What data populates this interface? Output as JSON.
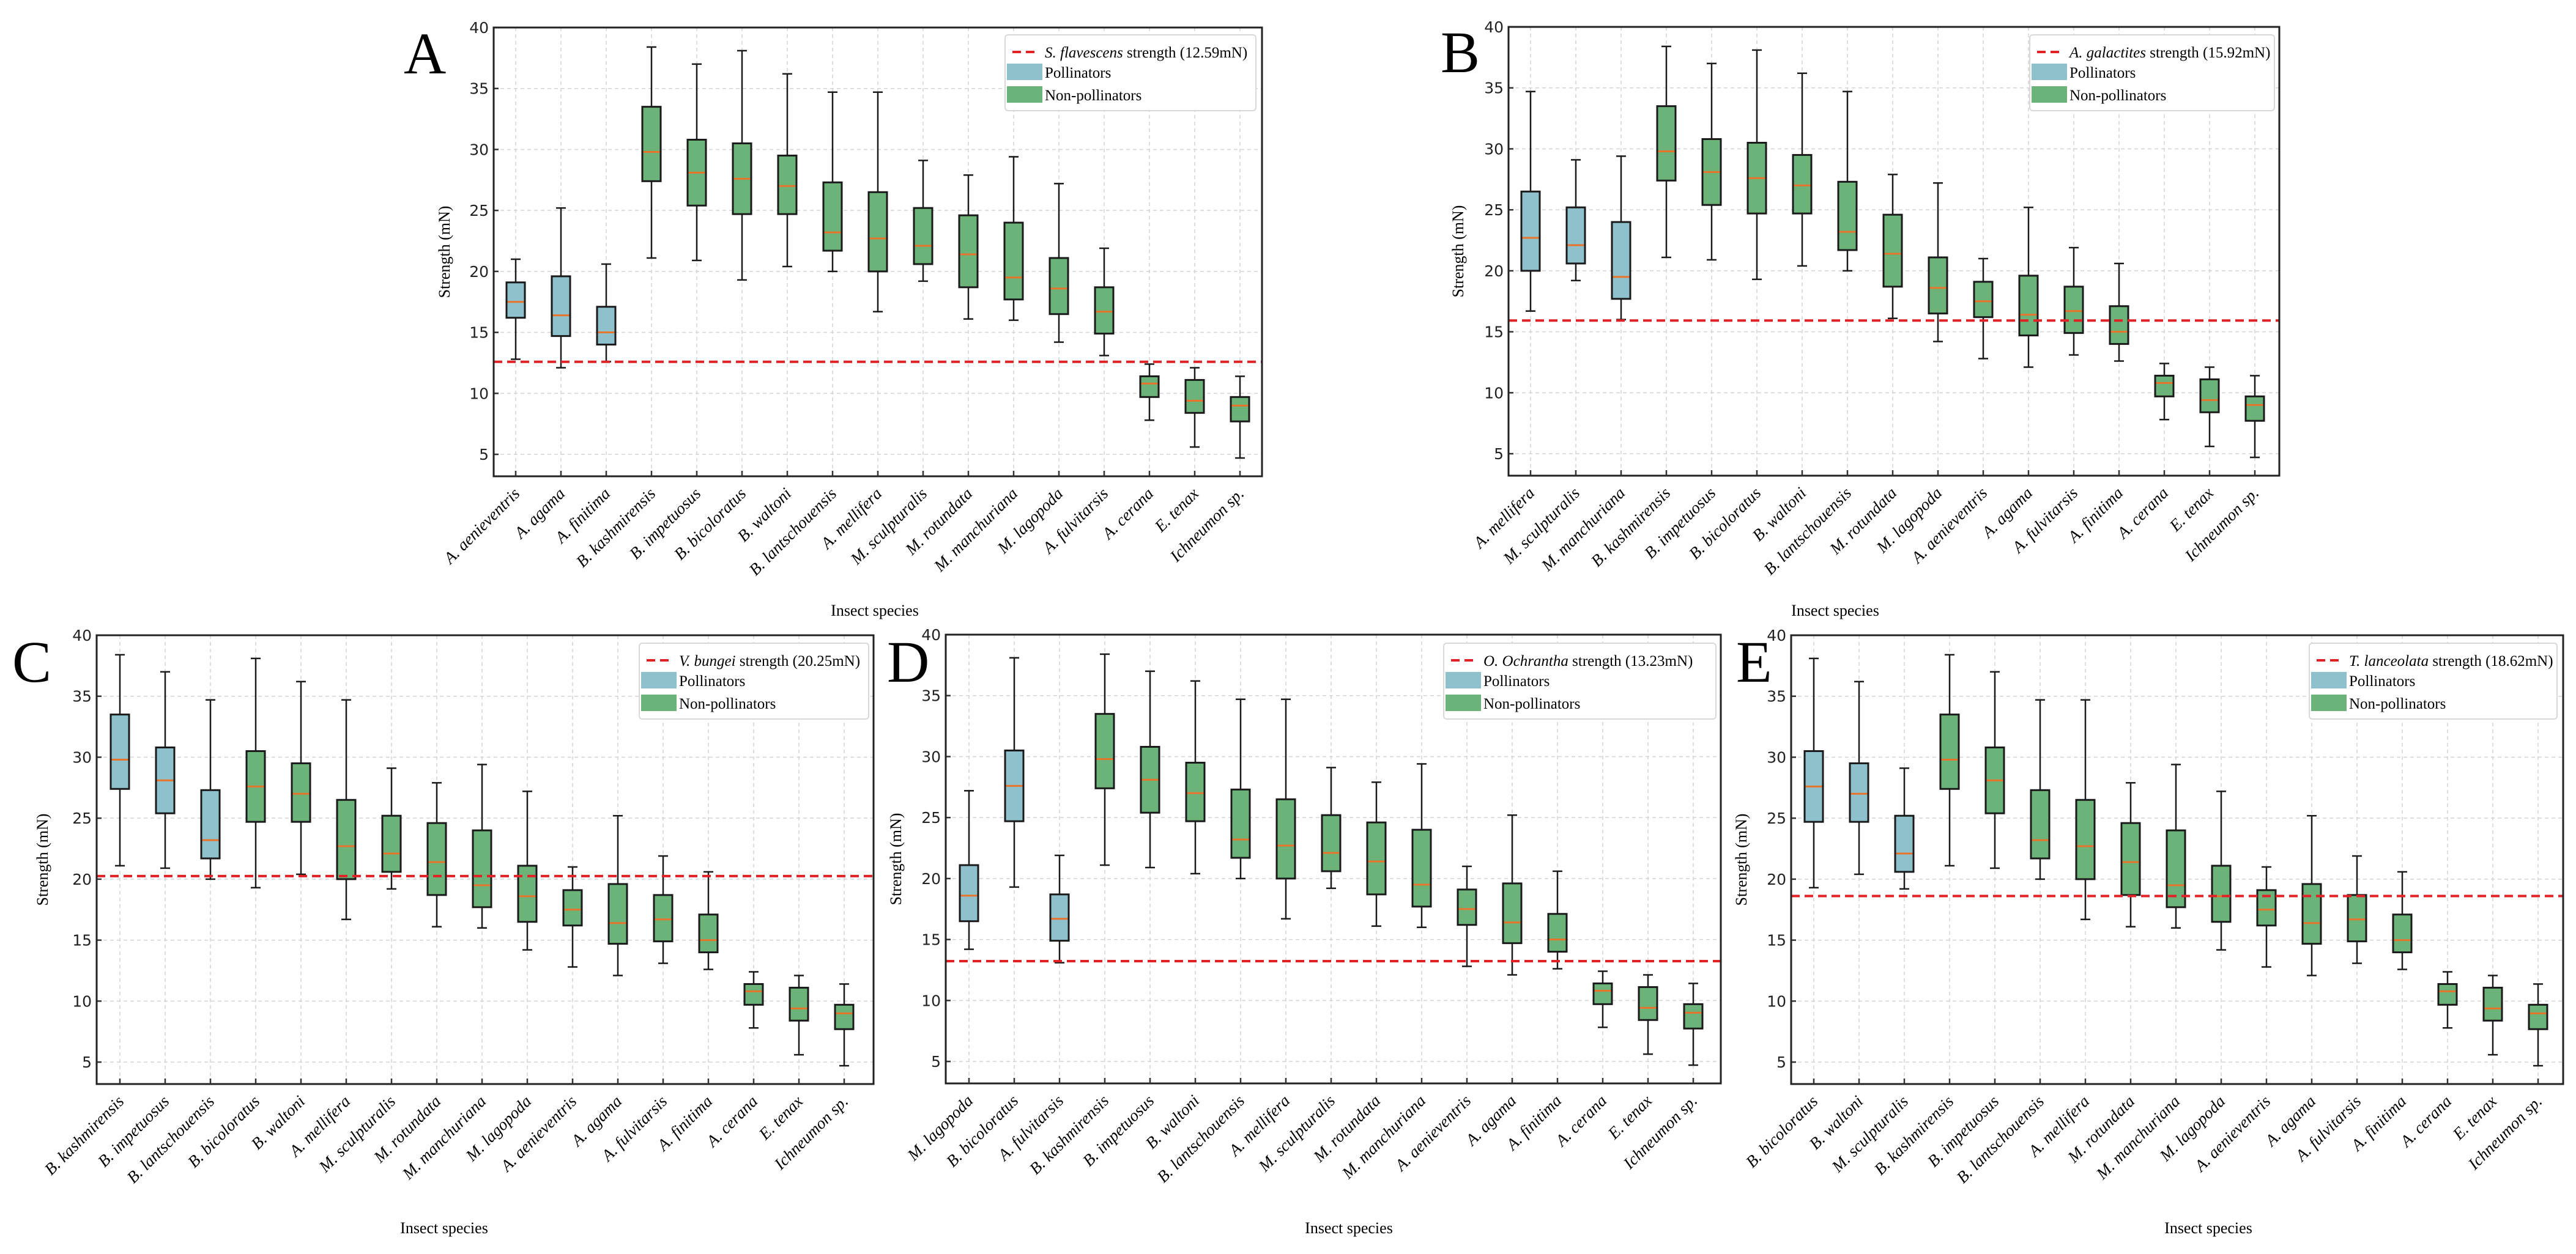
{
  "figure": {
    "colors": {
      "pollinator": "#8fc1cd",
      "non_pollinator": "#6cb37a",
      "median": "#e8742c",
      "threshold": "#e02126"
    },
    "legend_labels": {
      "pollinators": "Pollinators",
      "non_pollinators": "Non-pollinators"
    }
  },
  "chart_data": [
    {
      "type": "box",
      "panel": "A",
      "title": "",
      "xlabel": "Insect species",
      "ylabel": "Strength (mN)",
      "ylim": [
        3.2,
        40
      ],
      "yticks": [
        5,
        10,
        15,
        20,
        25,
        30,
        35,
        40
      ],
      "grid": true,
      "legend_position": "top-right",
      "threshold": {
        "species": "S. flavescens",
        "suffix": " strength (12.59mN)",
        "value": 12.59
      },
      "categories": [
        "A. aenieventris",
        "A. agama",
        "A. finitima",
        "B. kashmirensis",
        "B. impetuosus",
        "B. bicoloratus",
        "B. waltoni",
        "B. lantschouensis",
        "A. mellifera",
        "M. sculpturalis",
        "M. rotundata",
        "M. manchuriana",
        "M. lagopoda",
        "A. fulvitarsis",
        "A. cerana",
        "E. tenax",
        "Ichneumon sp."
      ],
      "pollinators": [
        "A. aenieventris",
        "A. agama",
        "A. finitima"
      ]
    },
    {
      "type": "box",
      "panel": "B",
      "title": "",
      "xlabel": "Insect species",
      "ylabel": "Strength (mN)",
      "ylim": [
        3.2,
        40
      ],
      "yticks": [
        5,
        10,
        15,
        20,
        25,
        30,
        35,
        40
      ],
      "grid": true,
      "legend_position": "top-right",
      "threshold": {
        "species": "A. galactites",
        "suffix": " strength (15.92mN)",
        "value": 15.92
      },
      "categories": [
        "A. mellifera",
        "M. sculpturalis",
        "M. manchuriana",
        "B. kashmirensis",
        "B. impetuosus",
        "B. bicoloratus",
        "B. waltoni",
        "B. lantschouensis",
        "M. rotundata",
        "M. lagopoda",
        "A. aenieventris",
        "A. agama",
        "A. fulvitarsis",
        "A. finitima",
        "A. cerana",
        "E. tenax",
        "Ichneumon sp."
      ],
      "pollinators": [
        "A. mellifera",
        "M. sculpturalis",
        "M. manchuriana"
      ]
    },
    {
      "type": "box",
      "panel": "C",
      "title": "",
      "xlabel": "Insect species",
      "ylabel": "Strength (mN)",
      "ylim": [
        3.2,
        40
      ],
      "yticks": [
        5,
        10,
        15,
        20,
        25,
        30,
        35,
        40
      ],
      "grid": true,
      "legend_position": "top-right",
      "threshold": {
        "species": "V. bungei",
        "suffix": " strength (20.25mN)",
        "value": 20.25
      },
      "categories": [
        "B. kashmirensis",
        "B. impetuosus",
        "B. lantschouensis",
        "B. bicoloratus",
        "B. waltoni",
        "A. mellifera",
        "M. sculpturalis",
        "M. rotundata",
        "M. manchuriana",
        "M. lagopoda",
        "A. aenieventris",
        "A. agama",
        "A. fulvitarsis",
        "A. finitima",
        "A. cerana",
        "E. tenax",
        "Ichneumon sp."
      ],
      "pollinators": [
        "B. kashmirensis",
        "B. impetuosus",
        "B. lantschouensis"
      ]
    },
    {
      "type": "box",
      "panel": "D",
      "title": "",
      "xlabel": "Insect species",
      "ylabel": "Strength (mN)",
      "ylim": [
        3.2,
        40
      ],
      "yticks": [
        5,
        10,
        15,
        20,
        25,
        30,
        35,
        40
      ],
      "grid": true,
      "legend_position": "top-right",
      "threshold": {
        "species": "O. Ochrantha",
        "suffix": " strength (13.23mN)",
        "value": 13.23
      },
      "categories": [
        "M. lagopoda",
        "B. bicoloratus",
        "A. fulvitarsis",
        "B. kashmirensis",
        "B. impetuosus",
        "B. waltoni",
        "B. lantschouensis",
        "A. mellifera",
        "M. sculpturalis",
        "M. rotundata",
        "M. manchuriana",
        "A. aenieventris",
        "A. agama",
        "A. finitima",
        "A. cerana",
        "E. tenax",
        "Ichneumon sp."
      ],
      "pollinators": [
        "M. lagopoda",
        "B. bicoloratus",
        "A. fulvitarsis"
      ]
    },
    {
      "type": "box",
      "panel": "E",
      "title": "",
      "xlabel": "Insect species",
      "ylabel": "Strength (mN)",
      "ylim": [
        3.2,
        40
      ],
      "yticks": [
        5,
        10,
        15,
        20,
        25,
        30,
        35,
        40
      ],
      "grid": true,
      "legend_position": "top-right",
      "threshold": {
        "species": "T. lanceolata",
        "suffix": " strength (18.62mN)",
        "value": 18.62
      },
      "categories": [
        "B. bicoloratus",
        "B. waltoni",
        "M. sculpturalis",
        "B. kashmirensis",
        "B. impetuosus",
        "B. lantschouensis",
        "A. mellifera",
        "M. rotundata",
        "M. manchuriana",
        "M. lagopoda",
        "A. aenieventris",
        "A. agama",
        "A. fulvitarsis",
        "A. finitima",
        "A. cerana",
        "E. tenax",
        "Ichneumon sp."
      ],
      "pollinators": [
        "B. bicoloratus",
        "B. waltoni",
        "M. sculpturalis"
      ]
    }
  ],
  "species_stats": {
    "B. kashmirensis": {
      "whislo": 21.1,
      "q1": 27.4,
      "med": 29.8,
      "q3": 33.5,
      "whishi": 38.4
    },
    "B. impetuosus": {
      "whislo": 20.9,
      "q1": 25.4,
      "med": 28.1,
      "q3": 30.8,
      "whishi": 37.0
    },
    "B. bicoloratus": {
      "whislo": 19.3,
      "q1": 24.7,
      "med": 27.6,
      "q3": 30.5,
      "whishi": 38.1
    },
    "B. waltoni": {
      "whislo": 20.4,
      "q1": 24.7,
      "med": 27.0,
      "q3": 29.5,
      "whishi": 36.2
    },
    "B. lantschouensis": {
      "whislo": 20.0,
      "q1": 21.7,
      "med": 23.2,
      "q3": 27.3,
      "whishi": 34.7
    },
    "A. mellifera": {
      "whislo": 16.7,
      "q1": 20.0,
      "med": 22.7,
      "q3": 26.5,
      "whishi": 34.7
    },
    "M. sculpturalis": {
      "whislo": 19.2,
      "q1": 20.6,
      "med": 22.1,
      "q3": 25.2,
      "whishi": 29.1
    },
    "M. rotundata": {
      "whislo": 16.1,
      "q1": 18.7,
      "med": 21.4,
      "q3": 24.6,
      "whishi": 27.9
    },
    "M. manchuriana": {
      "whislo": 16.0,
      "q1": 17.7,
      "med": 19.5,
      "q3": 24.0,
      "whishi": 29.4
    },
    "M. lagopoda": {
      "whislo": 14.2,
      "q1": 16.5,
      "med": 18.6,
      "q3": 21.1,
      "whishi": 27.2
    },
    "A. aenieventris": {
      "whislo": 12.8,
      "q1": 16.2,
      "med": 17.5,
      "q3": 19.1,
      "whishi": 21.0
    },
    "A. agama": {
      "whislo": 12.1,
      "q1": 14.7,
      "med": 16.4,
      "q3": 19.6,
      "whishi": 25.2
    },
    "A. fulvitarsis": {
      "whislo": 13.1,
      "q1": 14.9,
      "med": 16.7,
      "q3": 18.7,
      "whishi": 21.9
    },
    "A. finitima": {
      "whislo": 12.6,
      "q1": 14.0,
      "med": 15.0,
      "q3": 17.1,
      "whishi": 20.6
    },
    "A. cerana": {
      "whislo": 7.8,
      "q1": 9.7,
      "med": 10.8,
      "q3": 11.4,
      "whishi": 12.4
    },
    "E. tenax": {
      "whislo": 5.6,
      "q1": 8.4,
      "med": 9.4,
      "q3": 11.1,
      "whishi": 12.1
    },
    "Ichneumon sp.": {
      "whislo": 4.7,
      "q1": 7.7,
      "med": 9.0,
      "q3": 9.7,
      "whishi": 11.4
    }
  }
}
